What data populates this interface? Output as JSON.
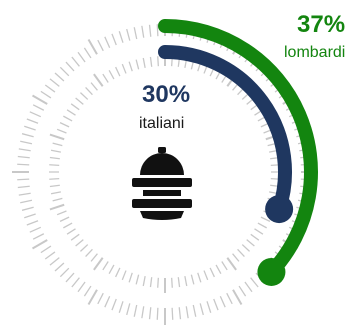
{
  "chart_data": {
    "type": "radial-bar",
    "series": [
      {
        "name": "lombardi",
        "value": 37,
        "value_label": "37%",
        "color": "#13850f",
        "track": "outer"
      },
      {
        "name": "italiani",
        "value": 30,
        "value_label": "30%",
        "color": "#1f3760",
        "track": "inner"
      }
    ],
    "max": 100,
    "icon": "fire-helmet-icon",
    "tick_color": "#c8c8c8"
  }
}
